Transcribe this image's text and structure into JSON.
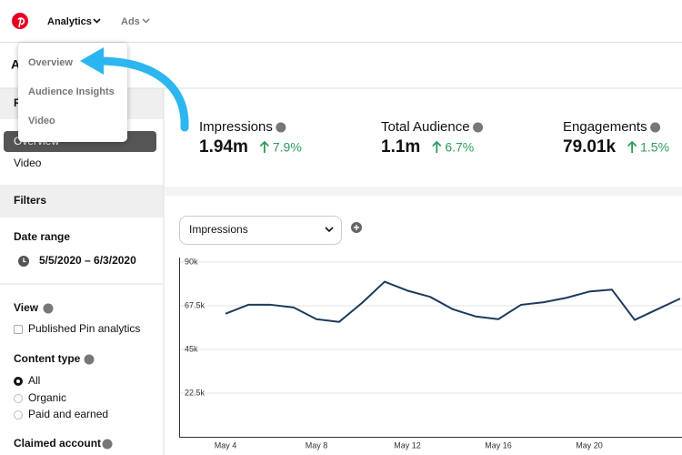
{
  "nav": {
    "items": [
      "Analytics",
      "Ads"
    ]
  },
  "dropdown": {
    "items": [
      "Overview",
      "Audience Insights",
      "Video"
    ]
  },
  "sidebar": {
    "heading": "A",
    "reports_heading": "R",
    "reports": [
      "Overview",
      "Video"
    ],
    "filters": "Filters",
    "date_range": {
      "label": "Date range",
      "value": "5/5/2020 – 6/3/2020"
    },
    "view": {
      "label": "View",
      "option": "Published Pin analytics"
    },
    "content_type": {
      "label": "Content type",
      "options": [
        "All",
        "Organic",
        "Paid and earned"
      ]
    },
    "claimed_account": "Claimed account"
  },
  "metrics": [
    {
      "label": "Impressions",
      "value": "1.94m",
      "change": "7.9%"
    },
    {
      "label": "Total Audience",
      "value": "1.1m",
      "change": "6.7%"
    },
    {
      "label": "Engagements",
      "value": "79.01k",
      "change": "1.5%"
    }
  ],
  "chart_data": {
    "type": "line",
    "metric_select": "Impressions",
    "categories": [
      "May 4",
      null,
      null,
      null,
      "May 8",
      null,
      null,
      null,
      "May 12",
      null,
      null,
      null,
      "May 16",
      null,
      null,
      null,
      "May 20",
      null,
      null,
      null,
      null
    ],
    "values": [
      63400,
      68000,
      68000,
      66600,
      60600,
      59200,
      68900,
      79900,
      75300,
      72100,
      65700,
      62000,
      60600,
      68000,
      69300,
      71600,
      74800,
      75800,
      60200,
      65700,
      71200
    ],
    "color": "#1d3a5c",
    "ylim": [
      0,
      90000
    ],
    "yticks": [
      {
        "value": 22500,
        "label": "22.5k"
      },
      {
        "value": 45000,
        "label": "45k"
      },
      {
        "value": 67500,
        "label": "67.5k"
      },
      {
        "value": 90000,
        "label": "90k"
      }
    ],
    "grid": true
  }
}
